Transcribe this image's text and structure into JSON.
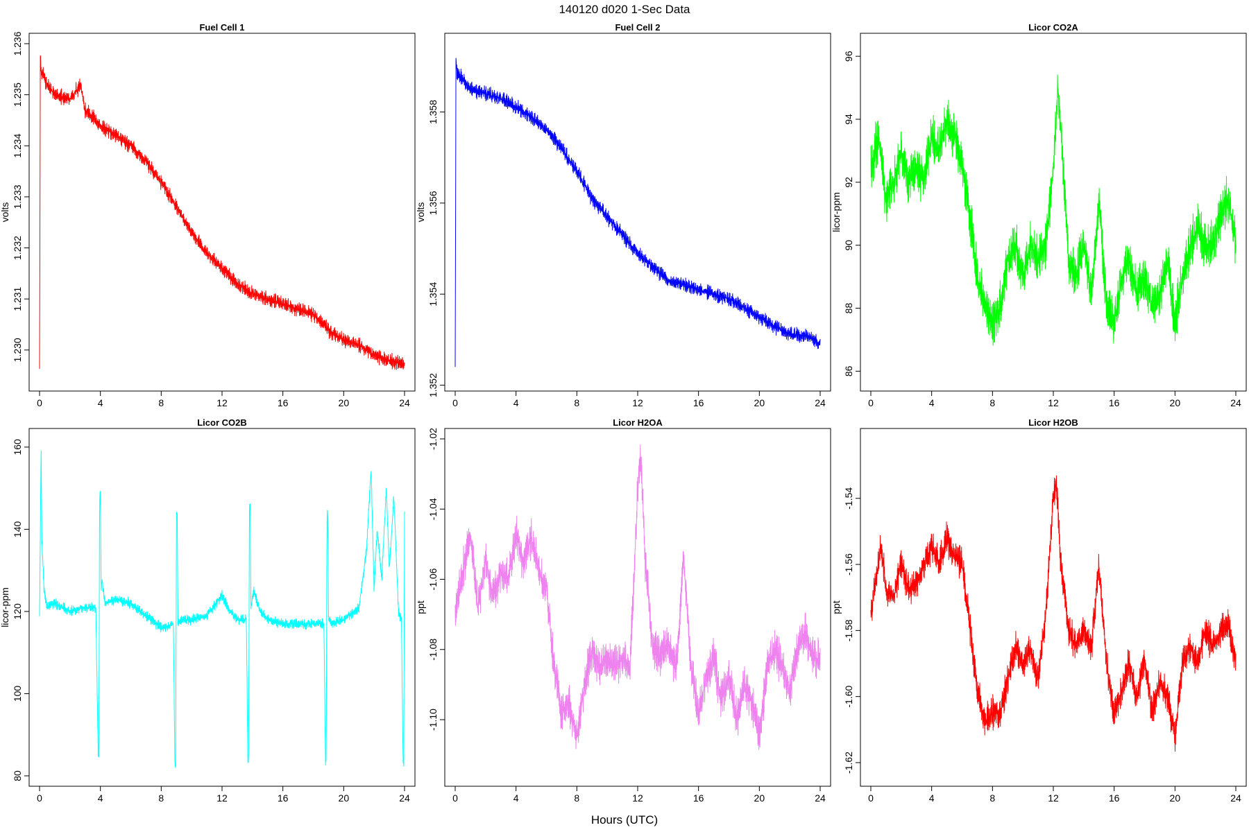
{
  "figure": {
    "title": "140120   d020   1-Sec Data",
    "xlabel": "Hours (UTC)"
  },
  "chart_data": [
    {
      "type": "line",
      "title": "Fuel Cell 1",
      "ylabel": "volts",
      "color": "#ff0000",
      "xlim": [
        0,
        24
      ],
      "ylim": [
        1.2294,
        1.236
      ],
      "x_ticks": [
        0,
        4,
        8,
        12,
        16,
        20,
        24
      ],
      "y_ticks": [
        1.23,
        1.231,
        1.232,
        1.233,
        1.234,
        1.235,
        1.236
      ],
      "y_tick_labels": [
        "1.230",
        "1.231",
        "1.232",
        "1.233",
        "1.234",
        "1.235",
        "1.236"
      ],
      "noise": 0.00018,
      "series": [
        {
          "x": [
            0,
            0.05,
            0.1,
            0.5,
            1,
            2,
            2.7,
            3,
            4,
            5,
            6,
            7,
            8,
            9,
            10,
            11,
            12,
            13,
            14,
            15,
            16,
            17,
            18,
            19,
            20,
            21,
            22,
            23,
            24
          ],
          "y": [
            1.2296,
            1.2358,
            1.2355,
            1.2352,
            1.235,
            1.2349,
            1.2352,
            1.2347,
            1.2344,
            1.2342,
            1.234,
            1.2337,
            1.2333,
            1.2328,
            1.2323,
            1.2319,
            1.2316,
            1.2313,
            1.2311,
            1.231,
            1.2309,
            1.2308,
            1.2307,
            1.2304,
            1.2302,
            1.2301,
            1.2299,
            1.2298,
            1.2297
          ]
        }
      ]
    },
    {
      "type": "line",
      "title": "Fuel Cell 2",
      "ylabel": "volts",
      "color": "#0000ff",
      "xlim": [
        0,
        24
      ],
      "ylim": [
        1.3521,
        1.3595
      ],
      "x_ticks": [
        0,
        4,
        8,
        12,
        16,
        20,
        24
      ],
      "y_ticks": [
        1.352,
        1.354,
        1.356,
        1.358
      ],
      "y_tick_labels": [
        "1.352",
        "1.354",
        "1.356",
        "1.358"
      ],
      "noise": 0.0002,
      "series": [
        {
          "x": [
            0,
            0.05,
            0.1,
            0.5,
            1,
            2,
            3,
            4,
            5,
            6,
            7,
            8,
            9,
            10,
            11,
            12,
            13,
            14,
            15,
            16,
            17,
            18,
            19,
            20,
            21,
            22,
            23,
            24
          ],
          "y": [
            1.3524,
            1.3592,
            1.3589,
            1.3587,
            1.3585,
            1.3584,
            1.3583,
            1.3581,
            1.3579,
            1.3576,
            1.3572,
            1.3567,
            1.3561,
            1.3557,
            1.3553,
            1.3549,
            1.3546,
            1.3543,
            1.3542,
            1.3541,
            1.354,
            1.3539,
            1.3537,
            1.3535,
            1.3533,
            1.3531,
            1.3531,
            1.3529
          ]
        }
      ]
    },
    {
      "type": "line",
      "title": "Licor CO2A",
      "ylabel": "licor-ppm",
      "color": "#00ff00",
      "xlim": [
        0,
        24
      ],
      "ylim": [
        85.7,
        96.4
      ],
      "x_ticks": [
        0,
        4,
        8,
        12,
        16,
        20,
        24
      ],
      "y_ticks": [
        86,
        88,
        90,
        92,
        94,
        96
      ],
      "y_tick_labels": [
        "86",
        "88",
        "90",
        "92",
        "94",
        "96"
      ],
      "noise": 0.9,
      "series": [
        {
          "x": [
            0,
            0.5,
            1,
            1.5,
            2,
            2.5,
            3,
            3.5,
            4,
            4.5,
            5,
            5.5,
            6,
            6.5,
            7,
            7.5,
            8,
            8.5,
            9,
            9.5,
            10,
            10.5,
            11,
            11.5,
            12,
            12.3,
            12.6,
            13,
            13.5,
            14,
            14.5,
            15,
            15.5,
            16,
            16.5,
            17,
            17.5,
            18,
            18.5,
            19,
            19.5,
            20,
            20.5,
            21,
            21.5,
            22,
            22.5,
            23,
            23.5,
            24
          ],
          "y": [
            92.5,
            93.5,
            91.5,
            92.0,
            93.0,
            92.0,
            92.5,
            92.0,
            93.5,
            93.0,
            94.0,
            93.5,
            92.5,
            91.0,
            89.0,
            88.0,
            87.5,
            88.0,
            89.5,
            90.0,
            89.0,
            90.0,
            89.5,
            90.0,
            92.5,
            95.0,
            93.0,
            89.5,
            89.0,
            90.0,
            88.5,
            91.5,
            88.0,
            87.5,
            89.0,
            89.5,
            88.5,
            89.0,
            88.0,
            88.5,
            89.5,
            87.5,
            89.0,
            90.0,
            90.5,
            90.0,
            90.0,
            91.0,
            91.5,
            90.0
          ]
        }
      ]
    },
    {
      "type": "line",
      "title": "Licor CO2B",
      "ylabel": "licor-ppm",
      "color": "#00ffff",
      "xlim": [
        0,
        24
      ],
      "ylim": [
        80,
        162
      ],
      "x_ticks": [
        0,
        4,
        8,
        12,
        16,
        20,
        24
      ],
      "y_ticks": [
        80,
        100,
        120,
        140,
        160
      ],
      "y_tick_labels": [
        "80",
        "100",
        "120",
        "140",
        "160"
      ],
      "noise": 1.5,
      "series": [
        {
          "x": [
            0,
            0.1,
            0.15,
            0.3,
            0.5,
            1,
            2,
            3,
            3.7,
            3.85,
            3.9,
            3.95,
            4.0,
            4.05,
            4.1,
            4.3,
            5,
            6,
            7,
            8,
            8.8,
            8.9,
            8.95,
            9.0,
            9.05,
            9.1,
            9.3,
            10,
            11,
            12,
            12.5,
            13,
            13.6,
            13.7,
            13.75,
            13.8,
            13.85,
            13.9,
            14.1,
            14.5,
            15,
            16,
            17,
            18,
            18.7,
            18.8,
            18.85,
            18.9,
            18.95,
            19.0,
            19.2,
            20,
            21,
            21.5,
            21.8,
            22.0,
            22.2,
            22.5,
            22.8,
            23.0,
            23.3,
            23.6,
            23.8,
            23.9,
            23.95,
            24.0
          ],
          "y": [
            118,
            160,
            138,
            125,
            121,
            122,
            120,
            121,
            121,
            86,
            85,
            148,
            150,
            125,
            128,
            122,
            123,
            122,
            119,
            116,
            117,
            83,
            82,
            143,
            144,
            117,
            118,
            118,
            119,
            124,
            120,
            118,
            118,
            83,
            84,
            145,
            146,
            121,
            125,
            120,
            118,
            117,
            117,
            117,
            117,
            83,
            84,
            143,
            144,
            118,
            117,
            118,
            121,
            135,
            155,
            125,
            140,
            128,
            150,
            130,
            148,
            120,
            118,
            84,
            83,
            144
          ]
        }
      ]
    },
    {
      "type": "line",
      "title": "Licor H2OA",
      "ylabel": "ppt",
      "color": "#ee82ee",
      "xlim": [
        0,
        24
      ],
      "ylim": [
        -1.116,
        -1.02
      ],
      "x_ticks": [
        0,
        4,
        8,
        12,
        16,
        20,
        24
      ],
      "y_ticks": [
        -1.1,
        -1.08,
        -1.06,
        -1.04,
        -1.02
      ],
      "y_tick_labels": [
        "-1.10",
        "-1.08",
        "-1.06",
        "-1.04",
        "-1.02"
      ],
      "noise": 0.007,
      "series": [
        {
          "x": [
            0,
            0.5,
            1,
            1.5,
            2,
            2.5,
            3,
            3.5,
            4,
            4.5,
            5,
            5.5,
            6,
            6.5,
            7,
            7.5,
            8,
            8.5,
            9,
            9.5,
            10,
            10.5,
            11,
            11.5,
            12,
            12.2,
            12.5,
            13,
            13.5,
            14,
            14.5,
            14.8,
            15,
            15.5,
            16,
            16.5,
            17,
            17.5,
            18,
            18.5,
            19,
            19.5,
            20,
            20.5,
            21,
            21.5,
            22,
            22.5,
            23,
            23.5,
            24
          ],
          "y": [
            -1.07,
            -1.058,
            -1.048,
            -1.068,
            -1.055,
            -1.065,
            -1.058,
            -1.06,
            -1.047,
            -1.055,
            -1.048,
            -1.058,
            -1.062,
            -1.085,
            -1.098,
            -1.095,
            -1.105,
            -1.09,
            -1.08,
            -1.085,
            -1.083,
            -1.085,
            -1.082,
            -1.085,
            -1.035,
            -1.025,
            -1.055,
            -1.08,
            -1.082,
            -1.078,
            -1.085,
            -1.07,
            -1.052,
            -1.085,
            -1.098,
            -1.088,
            -1.082,
            -1.095,
            -1.088,
            -1.1,
            -1.09,
            -1.095,
            -1.105,
            -1.085,
            -1.08,
            -1.085,
            -1.092,
            -1.08,
            -1.075,
            -1.082,
            -1.083
          ]
        }
      ]
    },
    {
      "type": "line",
      "title": "Licor H2OB",
      "ylabel": "ppt",
      "color": "#ff0000",
      "xlim": [
        0,
        24
      ],
      "ylim": [
        -1.624,
        -1.522
      ],
      "x_ticks": [
        0,
        4,
        8,
        12,
        16,
        20,
        24
      ],
      "y_ticks": [
        -1.62,
        -1.6,
        -1.58,
        -1.56,
        -1.54
      ],
      "y_tick_labels": [
        "-1.62",
        "-1.60",
        "-1.58",
        "-1.56",
        "-1.54"
      ],
      "noise": 0.006,
      "series": [
        {
          "x": [
            0,
            0.3,
            0.7,
            1,
            1.5,
            2,
            2.5,
            3,
            3.5,
            4,
            4.5,
            5,
            5.5,
            6,
            6.5,
            7,
            7.5,
            8,
            8.5,
            9,
            9.5,
            10,
            10.5,
            11,
            11.5,
            12,
            12.2,
            12.5,
            13,
            13.5,
            14,
            14.5,
            14.8,
            15,
            15.5,
            16,
            16.5,
            17,
            17.5,
            18,
            18.5,
            19,
            19.5,
            20,
            20.5,
            21,
            21.5,
            22,
            22.5,
            23,
            23.5,
            24
          ],
          "y": [
            -1.575,
            -1.565,
            -1.555,
            -1.568,
            -1.57,
            -1.56,
            -1.568,
            -1.565,
            -1.56,
            -1.555,
            -1.56,
            -1.552,
            -1.558,
            -1.56,
            -1.578,
            -1.598,
            -1.608,
            -1.605,
            -1.605,
            -1.595,
            -1.585,
            -1.59,
            -1.585,
            -1.595,
            -1.575,
            -1.54,
            -1.535,
            -1.56,
            -1.58,
            -1.585,
            -1.58,
            -1.585,
            -1.57,
            -1.56,
            -1.59,
            -1.605,
            -1.598,
            -1.59,
            -1.6,
            -1.588,
            -1.605,
            -1.595,
            -1.6,
            -1.612,
            -1.59,
            -1.585,
            -1.59,
            -1.58,
            -1.585,
            -1.58,
            -1.578,
            -1.59
          ]
        }
      ]
    }
  ]
}
